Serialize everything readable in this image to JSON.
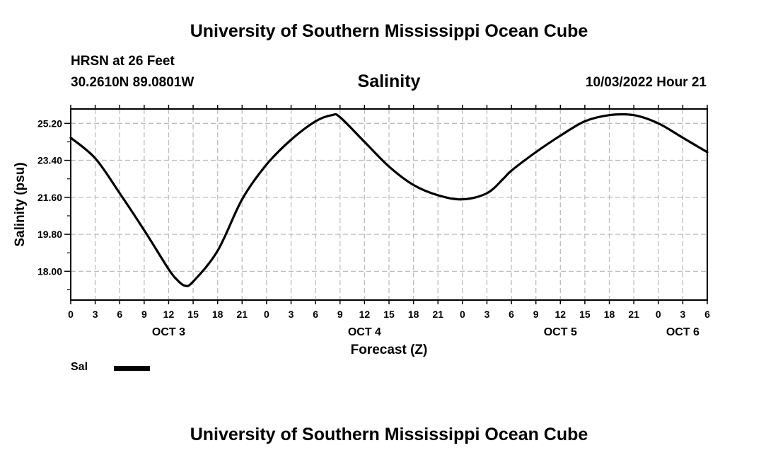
{
  "header": {
    "title": "University of Southern Mississippi Ocean Cube",
    "station": "HRSN at 26 Feet",
    "coords": "30.2610N  89.0801W",
    "plot_title": "Salinity",
    "datetime": "10/03/2022 Hour 21"
  },
  "footer": {
    "title": "University of Southern Mississippi Ocean Cube"
  },
  "legend": {
    "label": "Sal",
    "color": "#000000"
  },
  "chart_data": {
    "type": "line",
    "title": "Salinity",
    "xlabel": "Forecast (Z)",
    "ylabel": "Salinity (psu)",
    "xlim": [
      0,
      78
    ],
    "ylim": [
      16.6,
      25.9
    ],
    "grid": true,
    "grid_style": "dashed",
    "x_ticks": [
      0,
      3,
      6,
      9,
      12,
      15,
      18,
      21,
      24,
      27,
      30,
      33,
      36,
      39,
      42,
      45,
      48,
      51,
      54,
      57,
      60,
      63,
      66,
      69,
      72,
      75,
      78
    ],
    "x_tick_labels": [
      "0",
      "3",
      "6",
      "9",
      "12",
      "15",
      "18",
      "21",
      "0",
      "3",
      "6",
      "9",
      "12",
      "15",
      "18",
      "21",
      "0",
      "3",
      "6",
      "9",
      "12",
      "15",
      "18",
      "21",
      "0",
      "3",
      "6"
    ],
    "day_labels": [
      {
        "x": 12,
        "label": "OCT 3"
      },
      {
        "x": 36,
        "label": "OCT 4"
      },
      {
        "x": 60,
        "label": "OCT 5"
      },
      {
        "x": 75,
        "label": "OCT 6"
      }
    ],
    "y_ticks": [
      18.0,
      19.8,
      21.6,
      23.4,
      25.2
    ],
    "y_tick_labels": [
      "18.00",
      "19.80",
      "21.60",
      "23.40",
      "25.20"
    ],
    "series": [
      {
        "name": "Sal",
        "color": "#000000",
        "x": [
          0,
          3,
          6,
          9,
          12,
          13,
          14,
          15,
          18,
          21,
          24,
          27,
          30,
          32,
          33,
          36,
          39,
          42,
          45,
          48,
          51,
          53,
          54,
          57,
          60,
          63,
          66,
          69,
          72,
          75,
          78
        ],
        "y": [
          24.5,
          23.5,
          21.8,
          20.0,
          18.1,
          17.6,
          17.3,
          17.5,
          19.0,
          21.5,
          23.2,
          24.4,
          25.3,
          25.6,
          25.5,
          24.3,
          23.1,
          22.2,
          21.7,
          21.5,
          21.8,
          22.5,
          22.9,
          23.8,
          24.6,
          25.3,
          25.6,
          25.6,
          25.2,
          24.5,
          23.8
        ]
      }
    ]
  }
}
